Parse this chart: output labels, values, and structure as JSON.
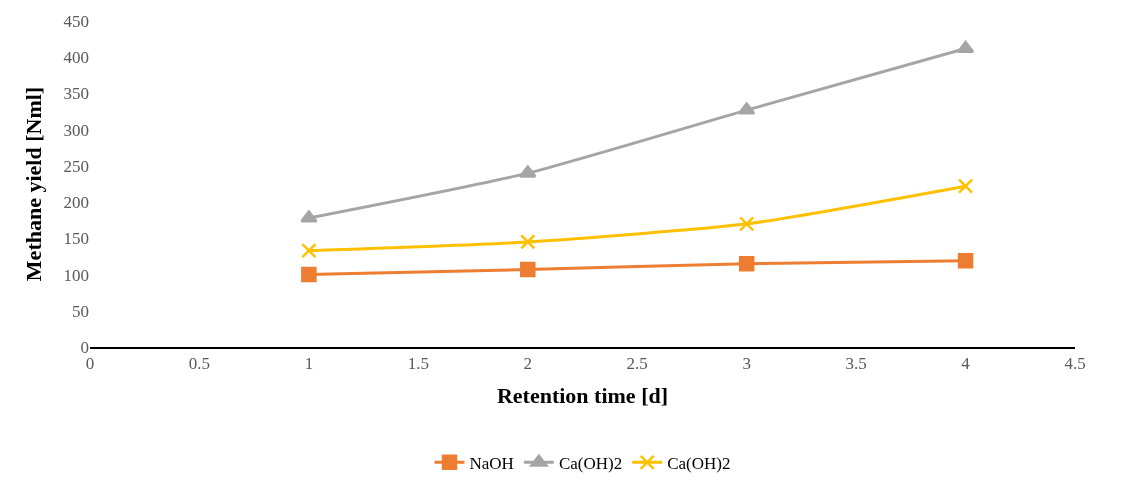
{
  "chart_data": {
    "type": "line",
    "xlabel": "Retention time [d]",
    "ylabel": "Methane yield [Nml]",
    "x": [
      1,
      2,
      3,
      4
    ],
    "series": [
      {
        "name": "NaOH",
        "color": "#ed7d31",
        "marker": "square",
        "values": [
          100,
          107,
          115,
          119
        ]
      },
      {
        "name": "Ca(OH)2",
        "color": "#a5a5a5",
        "marker": "triangle",
        "values": [
          178,
          240,
          327,
          412
        ]
      },
      {
        "name": "Ca(OH)2",
        "color": "#ffc000",
        "marker": "cross",
        "values": [
          133,
          145,
          170,
          222
        ]
      }
    ],
    "xlim": [
      0,
      4.5
    ],
    "xticks": [
      0,
      0.5,
      1,
      1.5,
      2,
      2.5,
      3,
      3.5,
      4,
      4.5
    ],
    "ylim": [
      0,
      450
    ],
    "yticks": [
      0,
      50,
      100,
      150,
      200,
      250,
      300,
      350,
      400,
      450
    ],
    "legend": "bottom"
  }
}
